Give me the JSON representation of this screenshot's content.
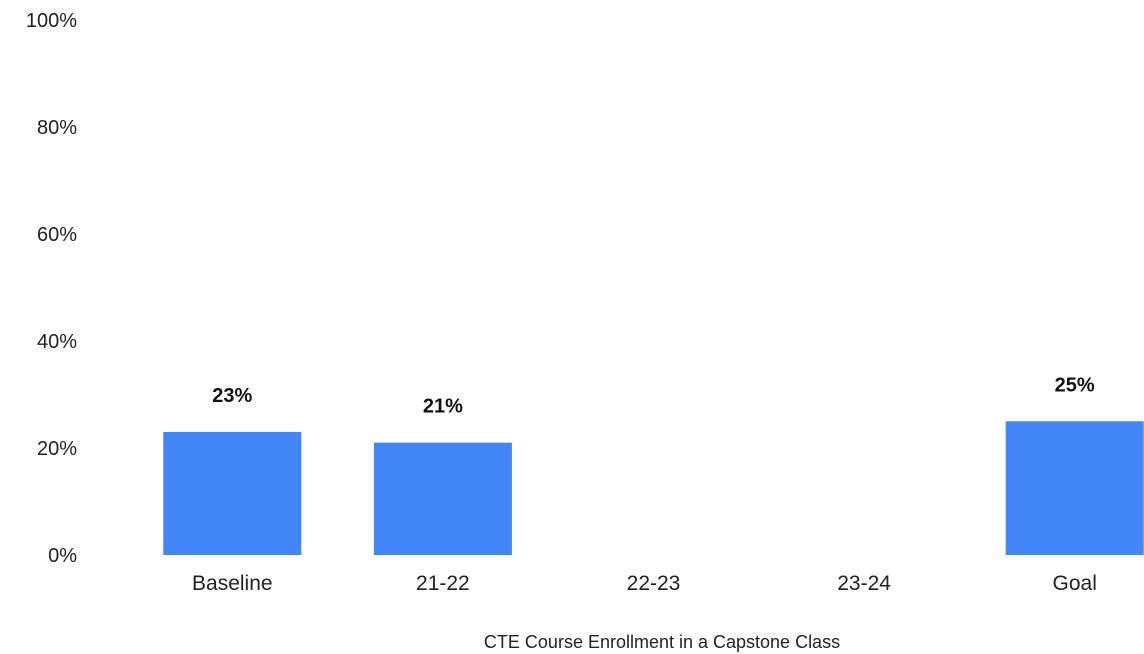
{
  "chart_data": {
    "type": "bar",
    "title": "",
    "xlabel": "CTE Course Enrollment in a Capstone Class",
    "ylabel": "",
    "categories": [
      "Baseline",
      "21-22",
      "22-23",
      "23-24",
      "Goal"
    ],
    "values": [
      23,
      21,
      null,
      null,
      25
    ],
    "data_labels": [
      "23%",
      "21%",
      "",
      "",
      "25%"
    ],
    "yticks": [
      0,
      20,
      40,
      60,
      80,
      100
    ],
    "ytick_labels": [
      "0%",
      "20%",
      "40%",
      "60%",
      "80%",
      "100%"
    ],
    "ylim": [
      0,
      100
    ],
    "grid": false,
    "legend": "none",
    "bar_color": "#4287f5"
  }
}
